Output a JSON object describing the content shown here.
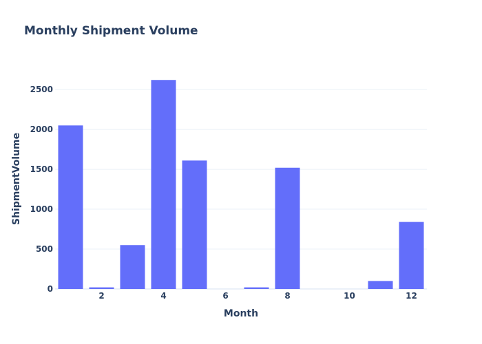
{
  "chart_data": {
    "type": "bar",
    "title": "Monthly Shipment Volume",
    "xlabel": "Month",
    "ylabel": "ShipmentVolume",
    "x": [
      1,
      2,
      3,
      4,
      5,
      6,
      7,
      8,
      9,
      10,
      11,
      12
    ],
    "values": [
      2050,
      20,
      550,
      2620,
      1610,
      0,
      20,
      1520,
      0,
      0,
      100,
      840
    ],
    "xticks": [
      2,
      4,
      6,
      8,
      10,
      12
    ],
    "yticks": [
      0,
      500,
      1000,
      1500,
      2000,
      2500
    ],
    "xlim": [
      0.5,
      12.5
    ],
    "ylim": [
      0,
      2760
    ],
    "bar_color": "#636efa",
    "grid": true
  }
}
